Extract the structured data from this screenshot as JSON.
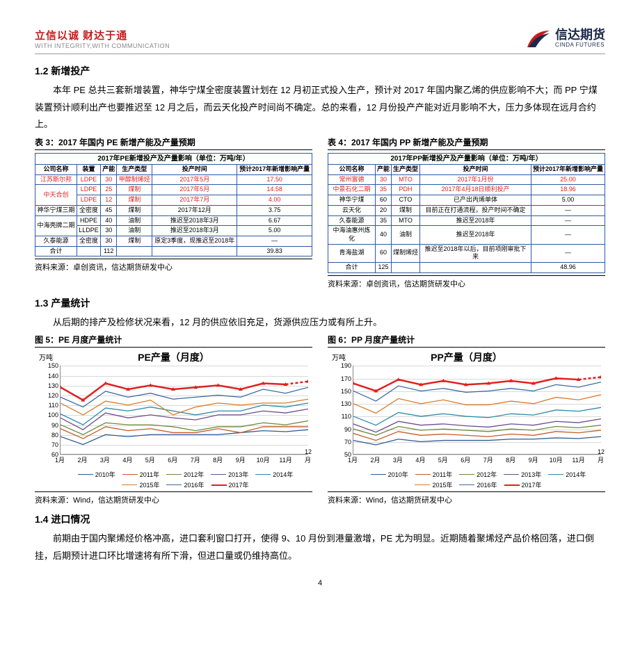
{
  "header": {
    "slogan_cn": "立信以诚  财达于通",
    "slogan_en": "WITH INTEGRITY,WITH COMMUNICATION",
    "logo_cn": "信达期货",
    "logo_en": "CINDA FUTURES",
    "logo_colors": [
      "#c91a1a",
      "#1a2a4a"
    ]
  },
  "sections": {
    "s12_title": "1.2 新增投产",
    "s12_body": "本年 PE 总共三套新增装置，神华宁煤全密度装置计划在 12 月初正式投入生产，预计对 2017 年国内聚乙烯的供应影响不大；而 PP 宁煤装置预计顺利出产也要推迟至 12 月之后，而云天化投产时间尚不确定。总的来看，12 月份投产产能对近月影响不大，压力多体现在远月合约上。",
    "s13_title": "1.3 产量统计",
    "s13_body": "从后期的排产及检修状况来看，12 月的供应依旧充足，货源供应压力或有所上升。",
    "s14_title": "1.4 进口情况",
    "s14_body": "前期由于国内聚烯烃价格冲高，进口套利窗口打开，使得 9、10 月份到港量激增，PE 尤为明显。近期随着聚烯烃产品价格回落，进口倒挂，后期预计进口环比增速将有所下滑，但进口量或仍维持高位。"
  },
  "table3": {
    "caption": "表 3：2017 年国内 PE 新增产能及产量预期",
    "title": "2017年PE新增投产及产量影响（单位：万吨/年）",
    "headers": [
      "公司名称",
      "装置",
      "产能",
      "生产类型",
      "投产时间",
      "预计2017年新增影响产量"
    ],
    "rows": [
      {
        "cells": [
          "江苏斯尔邦",
          "LDPE",
          "30",
          "甲醇制烯烃",
          "2017年5月",
          "17.50"
        ],
        "red": true,
        "rowspan": 1
      },
      {
        "cells": [
          "中天合创",
          "LDPE",
          "25",
          "煤制",
          "2017年5月",
          "14.58"
        ],
        "red": true,
        "rowspan": 2
      },
      {
        "cells": [
          "",
          "LDPE",
          "12",
          "煤制",
          "2017年7月",
          "4.00"
        ],
        "red": true,
        "rowspan": 0
      },
      {
        "cells": [
          "神华宁煤三期",
          "全密度",
          "45",
          "煤制",
          "2017年12月",
          "3.75"
        ],
        "red": false,
        "rowspan": 1
      },
      {
        "cells": [
          "中海壳牌二期",
          "HDPE",
          "40",
          "油制",
          "推迟至2018年3月",
          "6.67"
        ],
        "red": false,
        "rowspan": 2
      },
      {
        "cells": [
          "",
          "LLDPE",
          "30",
          "油制",
          "推迟至2018年3月",
          "5.00"
        ],
        "red": false,
        "rowspan": 0
      },
      {
        "cells": [
          "久泰能源",
          "全密度",
          "30",
          "煤制",
          "原定3季度，现推迟至2018年",
          "—"
        ],
        "red": false,
        "rowspan": 1
      },
      {
        "cells": [
          "合计",
          "",
          "112",
          "",
          "",
          "39.83"
        ],
        "red": false,
        "rowspan": 1
      }
    ],
    "source": "资料来源：卓创资讯，信达期货研发中心"
  },
  "table4": {
    "caption": "表 4：2017 年国内 PP 新增产能及产量预期",
    "title": "2017年PP新增投产及产量影响（单位：万吨/年）",
    "headers": [
      "公司名称",
      "产能",
      "生产类型",
      "投产时间",
      "预计2017年新增影响产量"
    ],
    "rows": [
      {
        "cells": [
          "常州富德",
          "30",
          "MTO",
          "2017年1月份",
          "25.00"
        ],
        "red": true
      },
      {
        "cells": [
          "中景石化二期",
          "35",
          "PDH",
          "2017年4月18日顺利投产",
          "18.96"
        ],
        "red": true
      },
      {
        "cells": [
          "神华宁煤",
          "60",
          "CTO",
          "已产出丙烯单体",
          "5.00"
        ],
        "red": false
      },
      {
        "cells": [
          "云天化",
          "20",
          "煤制",
          "目前正在打通流程，投产时间不确定",
          "—"
        ],
        "red": false
      },
      {
        "cells": [
          "久泰能源",
          "35",
          "MTO",
          "推迟至2018年",
          "—"
        ],
        "red": false
      },
      {
        "cells": [
          "中海油惠州炼化",
          "40",
          "油制",
          "推迟至2018年",
          "—"
        ],
        "red": false
      },
      {
        "cells": [
          "青海盐湖",
          "60",
          "煤制烯烃",
          "推迟至2018年以后，目前项刚审批下来",
          "—"
        ],
        "red": false
      },
      {
        "cells": [
          "合计",
          "125",
          "",
          "",
          "48.96"
        ],
        "red": false
      }
    ],
    "source": "资料来源：卓创资讯，信达期货研发中心"
  },
  "chart5": {
    "caption": "图 5：PE 月度产量统计",
    "title": "PE产量（月度）",
    "ylabel": "万吨",
    "ylim": [
      60,
      150
    ],
    "ystep": 10,
    "xlabels": [
      "1月",
      "2月",
      "3月",
      "4月",
      "5月",
      "6月",
      "7月",
      "8月",
      "9月",
      "10月",
      "11月",
      "12月"
    ],
    "series": [
      {
        "name": "2010年",
        "color": "#2f5b93",
        "data": [
          78,
          70,
          80,
          78,
          80,
          80,
          80,
          80,
          82,
          84,
          83,
          85
        ]
      },
      {
        "name": "2011年",
        "color": "#c45a29",
        "data": [
          86,
          76,
          88,
          84,
          86,
          82,
          82,
          86,
          82,
          88,
          88,
          88
        ]
      },
      {
        "name": "2012年",
        "color": "#6a8b3a",
        "data": [
          90,
          80,
          92,
          90,
          90,
          88,
          84,
          88,
          88,
          92,
          90,
          94
        ]
      },
      {
        "name": "2013年",
        "color": "#6d4b8c",
        "data": [
          97,
          85,
          102,
          97,
          100,
          97,
          95,
          100,
          100,
          104,
          102,
          106
        ]
      },
      {
        "name": "2014年",
        "color": "#2a8aa8",
        "data": [
          101,
          90,
          107,
          104,
          108,
          104,
          100,
          104,
          104,
          110,
          108,
          112
        ]
      },
      {
        "name": "2015年",
        "color": "#d67b2a",
        "data": [
          112,
          100,
          114,
          110,
          115,
          100,
          108,
          112,
          110,
          112,
          112,
          116
        ]
      },
      {
        "name": "2016年",
        "color": "#3a6aa0",
        "data": [
          118,
          108,
          124,
          118,
          122,
          116,
          118,
          120,
          118,
          126,
          122,
          128
        ]
      },
      {
        "name": "2017年",
        "color": "#e02020",
        "data": [
          128,
          115,
          132,
          126,
          130,
          126,
          128,
          130,
          126,
          132,
          131,
          134
        ],
        "thick": true,
        "dash_from": 10
      }
    ],
    "source": "资料来源：Wind，信达期货研发中心"
  },
  "chart6": {
    "caption": "图 6：PP 月度产量统计",
    "title": "PP产量（月度）",
    "ylabel": "万吨",
    "ylim": [
      50,
      190
    ],
    "ystep": 20,
    "xlabels": [
      "1月",
      "2月",
      "3月",
      "4月",
      "5月",
      "6月",
      "7月",
      "8月",
      "9月",
      "10月",
      "11月",
      "12月"
    ],
    "series": [
      {
        "name": "2010年",
        "color": "#2f5b93",
        "data": [
          72,
          65,
          74,
          70,
          72,
          72,
          72,
          74,
          74,
          76,
          75,
          78
        ]
      },
      {
        "name": "2011年",
        "color": "#c45a29",
        "data": [
          83,
          72,
          86,
          80,
          82,
          80,
          78,
          82,
          80,
          86,
          84,
          88
        ]
      },
      {
        "name": "2012年",
        "color": "#6a8b3a",
        "data": [
          90,
          80,
          94,
          88,
          90,
          88,
          86,
          90,
          88,
          94,
          92,
          96
        ]
      },
      {
        "name": "2013年",
        "color": "#6d4b8c",
        "data": [
          98,
          85,
          102,
          96,
          98,
          95,
          93,
          98,
          96,
          102,
          100,
          106
        ]
      },
      {
        "name": "2014年",
        "color": "#2a8aa8",
        "data": [
          110,
          96,
          116,
          110,
          114,
          110,
          108,
          114,
          112,
          120,
          118,
          124
        ]
      },
      {
        "name": "2015年",
        "color": "#d67b2a",
        "data": [
          130,
          115,
          138,
          130,
          136,
          128,
          128,
          134,
          130,
          140,
          136,
          144
        ]
      },
      {
        "name": "2016年",
        "color": "#3a6aa0",
        "data": [
          150,
          134,
          158,
          150,
          154,
          148,
          150,
          154,
          150,
          160,
          156,
          164
        ]
      },
      {
        "name": "2017年",
        "color": "#e02020",
        "data": [
          162,
          150,
          168,
          160,
          166,
          160,
          162,
          166,
          162,
          170,
          168,
          172
        ],
        "thick": true,
        "dash_from": 10
      }
    ],
    "source": "资料来源：Wind，信达期货研发中心"
  },
  "page_num": "4"
}
